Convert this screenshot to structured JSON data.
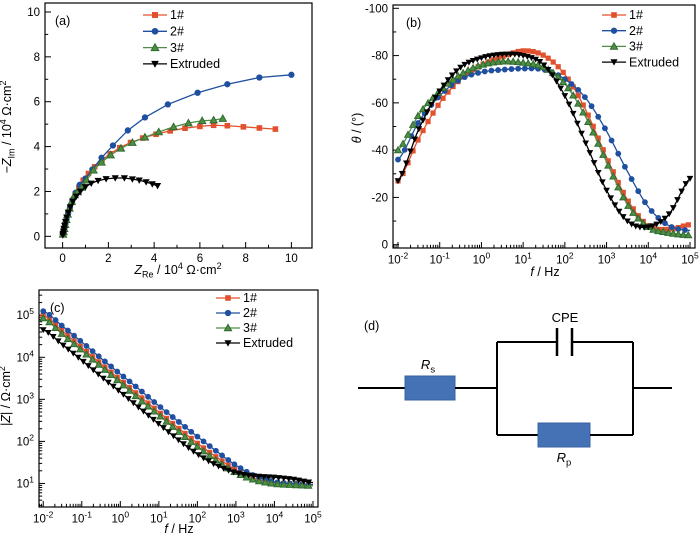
{
  "background": "#ffffff",
  "figure_caption_letters": [
    "(a)",
    "(b)",
    "(c)",
    "(d)"
  ],
  "legend_labels": [
    "1#",
    "2#",
    "3#",
    "Extruded"
  ],
  "colors": {
    "series1": "#e2502e",
    "series2": "#1f4fa0",
    "series3": "#4f8f45",
    "series3_edge": "#2f6b2f",
    "extruded": "#000000",
    "resistor_fill": "#4472b4",
    "resistor_stroke": "#39619f",
    "axis": "#000000"
  },
  "chart_data": [
    {
      "id": "a",
      "type": "scatter",
      "panel_label": "(a)",
      "xlabel": "Z_Re / 10^4 Ω·cm^2",
      "ylabel": "−Z_Im / 10^4 Ω·cm^2",
      "x_axis": {
        "scale": "linear",
        "min": -0.77,
        "max": 10.9,
        "major_ticks": [
          0,
          2,
          4,
          6,
          8,
          10
        ],
        "minor_step": 1,
        "label_segments": [
          {
            "i": "Z"
          },
          {
            "sub": "Re"
          },
          {
            "t": " / 10"
          },
          {
            "sup": "4"
          },
          {
            "t": " Ω·cm"
          },
          {
            "sup": "2"
          }
        ]
      },
      "y_axis": {
        "scale": "linear",
        "min": -0.52,
        "max": 10.4,
        "major_ticks": [
          0,
          2,
          4,
          6,
          8,
          10
        ],
        "minor_step": 1,
        "label_segments": [
          {
            "i": "−Z"
          },
          {
            "sub": "Im"
          },
          {
            "t": " / 10"
          },
          {
            "sup": "4"
          },
          {
            "t": " Ω·cm"
          },
          {
            "sup": "2"
          }
        ]
      },
      "series": [
        {
          "name": "1#",
          "color": "#e2502e",
          "marker": "square",
          "points": [
            [
              0.02,
              0.08
            ],
            [
              0.04,
              0.18
            ],
            [
              0.06,
              0.3
            ],
            [
              0.09,
              0.44
            ],
            [
              0.13,
              0.62
            ],
            [
              0.18,
              0.82
            ],
            [
              0.24,
              1.05
            ],
            [
              0.32,
              1.3
            ],
            [
              0.42,
              1.58
            ],
            [
              0.55,
              1.88
            ],
            [
              0.71,
              2.18
            ],
            [
              0.9,
              2.5
            ],
            [
              1.13,
              2.8
            ],
            [
              1.4,
              3.1
            ],
            [
              1.72,
              3.4
            ],
            [
              2.08,
              3.68
            ],
            [
              2.5,
              3.95
            ],
            [
              2.97,
              4.18
            ],
            [
              3.5,
              4.38
            ],
            [
              4.08,
              4.55
            ],
            [
              4.7,
              4.7
            ],
            [
              5.35,
              4.82
            ],
            [
              6.0,
              4.9
            ],
            [
              6.6,
              4.95
            ],
            [
              7.2,
              4.93
            ],
            [
              7.9,
              4.88
            ],
            [
              8.6,
              4.83
            ],
            [
              9.3,
              4.78
            ]
          ]
        },
        {
          "name": "2#",
          "color": "#1f4fa0",
          "marker": "circle",
          "points": [
            [
              0.02,
              0.1
            ],
            [
              0.05,
              0.22
            ],
            [
              0.08,
              0.38
            ],
            [
              0.12,
              0.56
            ],
            [
              0.17,
              0.78
            ],
            [
              0.24,
              1.02
            ],
            [
              0.32,
              1.3
            ],
            [
              0.43,
              1.62
            ],
            [
              0.57,
              1.95
            ],
            [
              0.75,
              2.3
            ],
            [
              1.0,
              2.58
            ],
            [
              1.3,
              2.98
            ],
            [
              1.7,
              3.5
            ],
            [
              2.2,
              4.05
            ],
            [
              2.85,
              4.72
            ],
            [
              3.6,
              5.3
            ],
            [
              4.6,
              5.88
            ],
            [
              5.9,
              6.4
            ],
            [
              7.2,
              6.78
            ],
            [
              8.6,
              7.08
            ],
            [
              10.0,
              7.2
            ]
          ]
        },
        {
          "name": "3#",
          "color": "#4f8f45",
          "marker": "triangle-up",
          "marker_stroke": "#2f6b2f",
          "points": [
            [
              0.02,
              0.09
            ],
            [
              0.04,
              0.2
            ],
            [
              0.07,
              0.34
            ],
            [
              0.11,
              0.52
            ],
            [
              0.16,
              0.74
            ],
            [
              0.22,
              0.98
            ],
            [
              0.3,
              1.25
            ],
            [
              0.4,
              1.55
            ],
            [
              0.53,
              1.85
            ],
            [
              0.66,
              1.98
            ],
            [
              0.83,
              2.18
            ],
            [
              1.05,
              2.5
            ],
            [
              1.35,
              2.95
            ],
            [
              1.7,
              3.3
            ],
            [
              2.1,
              3.62
            ],
            [
              2.55,
              3.92
            ],
            [
              3.05,
              4.18
            ],
            [
              3.6,
              4.42
            ],
            [
              4.2,
              4.65
            ],
            [
              4.85,
              4.88
            ],
            [
              5.5,
              5.05
            ],
            [
              6.1,
              5.15
            ],
            [
              6.6,
              5.18
            ],
            [
              7.0,
              5.25
            ]
          ]
        },
        {
          "name": "Extruded",
          "color": "#000000",
          "marker": "triangle-down",
          "points": [
            [
              0.01,
              0.05
            ],
            [
              0.02,
              0.12
            ],
            [
              0.04,
              0.22
            ],
            [
              0.06,
              0.34
            ],
            [
              0.09,
              0.48
            ],
            [
              0.13,
              0.65
            ],
            [
              0.18,
              0.85
            ],
            [
              0.25,
              1.06
            ],
            [
              0.34,
              1.3
            ],
            [
              0.45,
              1.55
            ],
            [
              0.6,
              1.78
            ],
            [
              0.78,
              2.0
            ],
            [
              1.0,
              2.2
            ],
            [
              1.25,
              2.36
            ],
            [
              1.55,
              2.48
            ],
            [
              1.9,
              2.56
            ],
            [
              2.3,
              2.6
            ],
            [
              2.7,
              2.6
            ],
            [
              3.05,
              2.55
            ],
            [
              3.35,
              2.5
            ],
            [
              3.65,
              2.42
            ],
            [
              3.92,
              2.33
            ],
            [
              4.15,
              2.25
            ]
          ]
        }
      ]
    },
    {
      "id": "b",
      "type": "line",
      "panel_label": "(b)",
      "xlabel": "f / Hz",
      "ylabel": "θ / (°)",
      "x_axis": {
        "scale": "log",
        "min_exp": -2.12,
        "max_exp": 5.12,
        "ticks_exp": [
          -2,
          -1,
          0,
          1,
          2,
          3,
          4,
          5
        ],
        "label_segments": [
          {
            "i": "f"
          },
          {
            "t": " / Hz"
          }
        ]
      },
      "y_axis": {
        "scale": "linear",
        "min": 1.4,
        "max": -101.4,
        "major_ticks": [
          0,
          -20,
          -40,
          -60,
          -80,
          -100
        ],
        "minor_step": 10,
        "label_segments": [
          {
            "i": "θ"
          },
          {
            "t": " / (°)"
          }
        ]
      },
      "series": [
        {
          "name": "1#",
          "color": "#e2502e",
          "marker": "square",
          "log_f_start": -2,
          "log_f_step": 0.5,
          "marker_step": 0.12,
          "values": [
            -27,
            -45,
            -60,
            -70,
            -76,
            -79.5,
            -82,
            -80,
            -72,
            -57,
            -37,
            -19,
            -8,
            -6.5,
            -8.5
          ]
        },
        {
          "name": "2#",
          "color": "#1f4fa0",
          "marker": "circle",
          "log_f_start": -2,
          "log_f_step": 0.5,
          "marker_step": 0.16,
          "values": [
            -36,
            -52,
            -63,
            -70,
            -73,
            -74,
            -74.5,
            -74,
            -70,
            -62,
            -48,
            -31,
            -16,
            -8,
            -6
          ]
        },
        {
          "name": "3#",
          "color": "#4f8f45",
          "marker": "triangle-up",
          "marker_stroke": "#2f6b2f",
          "log_f_start": -2,
          "log_f_step": 0.5,
          "marker_step": 0.12,
          "values": [
            -40,
            -55,
            -65,
            -72,
            -76,
            -77.5,
            -77,
            -75,
            -68,
            -54,
            -35,
            -17,
            -7.5,
            -5,
            -4
          ]
        },
        {
          "name": "Extruded",
          "color": "#000000",
          "marker": "triangle-down",
          "log_f_start": -2,
          "log_f_step": 0.5,
          "marker_step": 0.1,
          "values": [
            -27,
            -49,
            -65,
            -75,
            -79,
            -80.5,
            -80,
            -76,
            -63,
            -43,
            -23,
            -10,
            -7.5,
            -13,
            -28
          ]
        }
      ]
    },
    {
      "id": "c",
      "type": "line",
      "panel_label": "(c)",
      "xlabel": "f / Hz",
      "ylabel": "|Z| / Ω·cm^2",
      "x_axis": {
        "scale": "log",
        "min_exp": -2.11,
        "max_exp": 5.13,
        "ticks_exp": [
          -2,
          -1,
          0,
          1,
          2,
          3,
          4,
          5
        ],
        "label_segments": [
          {
            "i": "f"
          },
          {
            "t": " / Hz"
          }
        ]
      },
      "y_axis": {
        "scale": "log",
        "min_exp": 0.44,
        "max_exp": 5.6,
        "ticks_exp": [
          1,
          2,
          3,
          4,
          5
        ],
        "label_segments": [
          {
            "t": "|"
          },
          {
            "i": "Z"
          },
          {
            "t": "| / Ω·cm"
          },
          {
            "sup": "2"
          }
        ]
      },
      "series": [
        {
          "name": "1#",
          "color": "#e2502e",
          "marker": "square",
          "log_f_start": -2,
          "log_f_step": 0.5,
          "marker_step": 0.16,
          "values": [
            100000,
            42000,
            17000,
            7000,
            2900,
            1200,
            500,
            210,
            90,
            42,
            21,
            13,
            10.5,
            9.8,
            9.5
          ]
        },
        {
          "name": "2#",
          "color": "#1f4fa0",
          "marker": "circle",
          "log_f_start": -2,
          "log_f_step": 0.5,
          "marker_step": 0.16,
          "values": [
            125000,
            55000,
            23000,
            9500,
            4000,
            1700,
            700,
            300,
            130,
            58,
            27,
            15,
            11,
            9.8,
            9.3
          ]
        },
        {
          "name": "3#",
          "color": "#4f8f45",
          "marker": "triangle-up",
          "marker_stroke": "#2f6b2f",
          "log_f_start": -2,
          "log_f_step": 0.5,
          "marker_step": 0.16,
          "values": [
            85000,
            35000,
            14500,
            6000,
            2500,
            1000,
            420,
            175,
            75,
            35,
            18,
            12,
            9.8,
            9.2,
            8.8
          ]
        },
        {
          "name": "Extruded",
          "color": "#000000",
          "marker": "triangle-down",
          "log_f_start": -2,
          "log_f_step": 0.5,
          "marker_step": 0.13,
          "values": [
            45000,
            20000,
            8500,
            3500,
            1500,
            620,
            260,
            110,
            50,
            27,
            18,
            15,
            14,
            12.5,
            10.5
          ]
        }
      ]
    },
    {
      "id": "d",
      "type": "circuit",
      "panel_label": "(d)",
      "topology": "Rs in series with (CPE parallel Rp)",
      "wire_color": "#000000",
      "resistor_fill": "#4472b4",
      "resistor_stroke": "#39619f",
      "components": [
        {
          "name": "Rs",
          "kind": "resistor",
          "label_segments": [
            {
              "i": "R"
            },
            {
              "sub": "s"
            }
          ]
        },
        {
          "name": "CPE",
          "kind": "cpe",
          "label_segments": [
            {
              "t": "CPE"
            }
          ]
        },
        {
          "name": "Rp",
          "kind": "resistor",
          "label_segments": [
            {
              "i": "R"
            },
            {
              "sub": "p"
            }
          ]
        }
      ]
    }
  ]
}
